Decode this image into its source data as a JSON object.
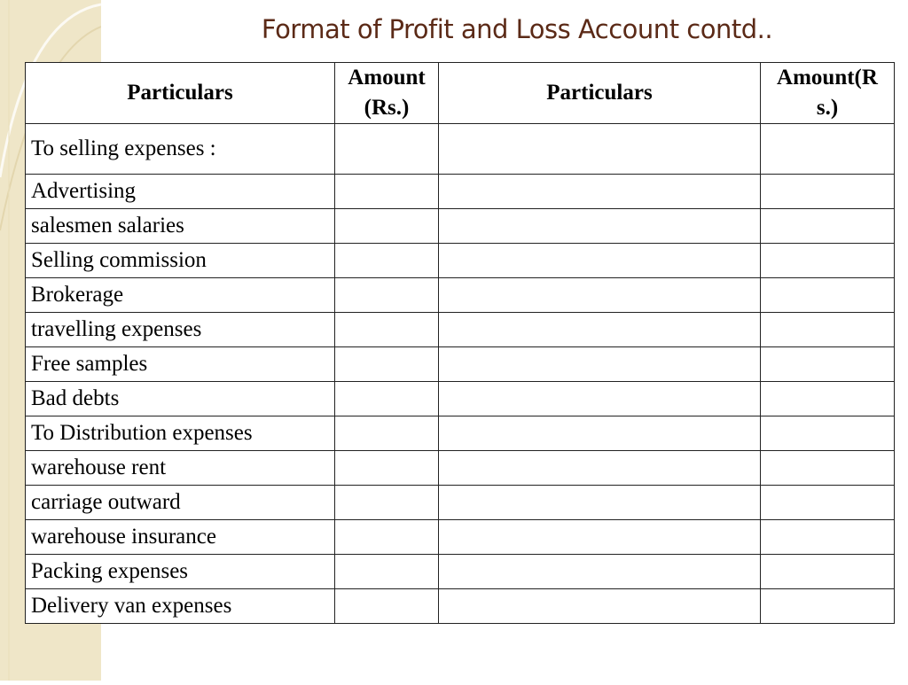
{
  "header": {
    "title": "Format of Profit and Loss Account contd.."
  },
  "table": {
    "columns": [
      "Particulars",
      "Amount (Rs.)",
      "Particulars",
      "Amount(Rs.)"
    ],
    "rows": [
      "To selling expenses :",
      "Advertising",
      "salesmen salaries",
      "Selling commission",
      "Brokerage",
      "travelling expenses",
      "Free samples",
      "Bad debts",
      "To Distribution expenses",
      "warehouse rent",
      "carriage outward",
      "warehouse insurance",
      "Packing expenses",
      "Delivery van expenses"
    ]
  }
}
